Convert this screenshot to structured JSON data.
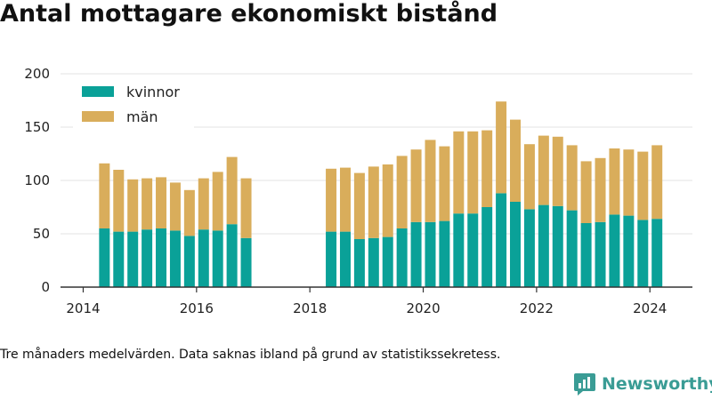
{
  "title": "Antal mottagare ekonomiskt bistånd",
  "note": "Tre månaders medelvärden. Data saknas ibland på grund av statistikssekretess.",
  "brand": {
    "name": "Newsworthy",
    "icon": "newsworthy-logo-icon"
  },
  "colors": {
    "kvinnor": "#0aa198",
    "man": "#d9ad5b",
    "grid": "#e3e3e3",
    "axis": "#333333"
  },
  "chart_data": {
    "type": "bar",
    "stacked": true,
    "ylim": [
      0,
      200
    ],
    "xlim": [
      2013.6,
      2024.75
    ],
    "yticks": [
      0,
      50,
      100,
      150,
      200
    ],
    "xticks": [
      2014,
      2016,
      2018,
      2020,
      2022,
      2024
    ],
    "grid": "horizontal",
    "legend_position": "top-left",
    "x": [
      2014.375,
      2014.625,
      2014.875,
      2015.125,
      2015.375,
      2015.625,
      2015.875,
      2016.125,
      2016.375,
      2016.625,
      2016.875,
      2018.375,
      2018.625,
      2018.875,
      2019.125,
      2019.375,
      2019.625,
      2019.875,
      2020.125,
      2020.375,
      2020.625,
      2020.875,
      2021.125,
      2021.375,
      2021.625,
      2021.875,
      2022.125,
      2022.375,
      2022.625,
      2022.875,
      2023.125,
      2023.375,
      2023.625,
      2023.875,
      2024.125
    ],
    "series": [
      {
        "name": "kvinnor",
        "values": [
          55,
          52,
          52,
          54,
          55,
          53,
          48,
          54,
          53,
          59,
          46,
          52,
          52,
          45,
          46,
          47,
          55,
          61,
          61,
          62,
          69,
          69,
          75,
          88,
          80,
          73,
          77,
          76,
          72,
          60,
          61,
          68,
          67,
          63,
          64
        ]
      },
      {
        "name": "män",
        "values": [
          61,
          58,
          49,
          48,
          48,
          45,
          43,
          48,
          55,
          63,
          56,
          59,
          60,
          62,
          67,
          68,
          68,
          68,
          77,
          70,
          77,
          77,
          72,
          86,
          77,
          61,
          65,
          65,
          61,
          58,
          60,
          62,
          62,
          64,
          69
        ]
      }
    ]
  }
}
